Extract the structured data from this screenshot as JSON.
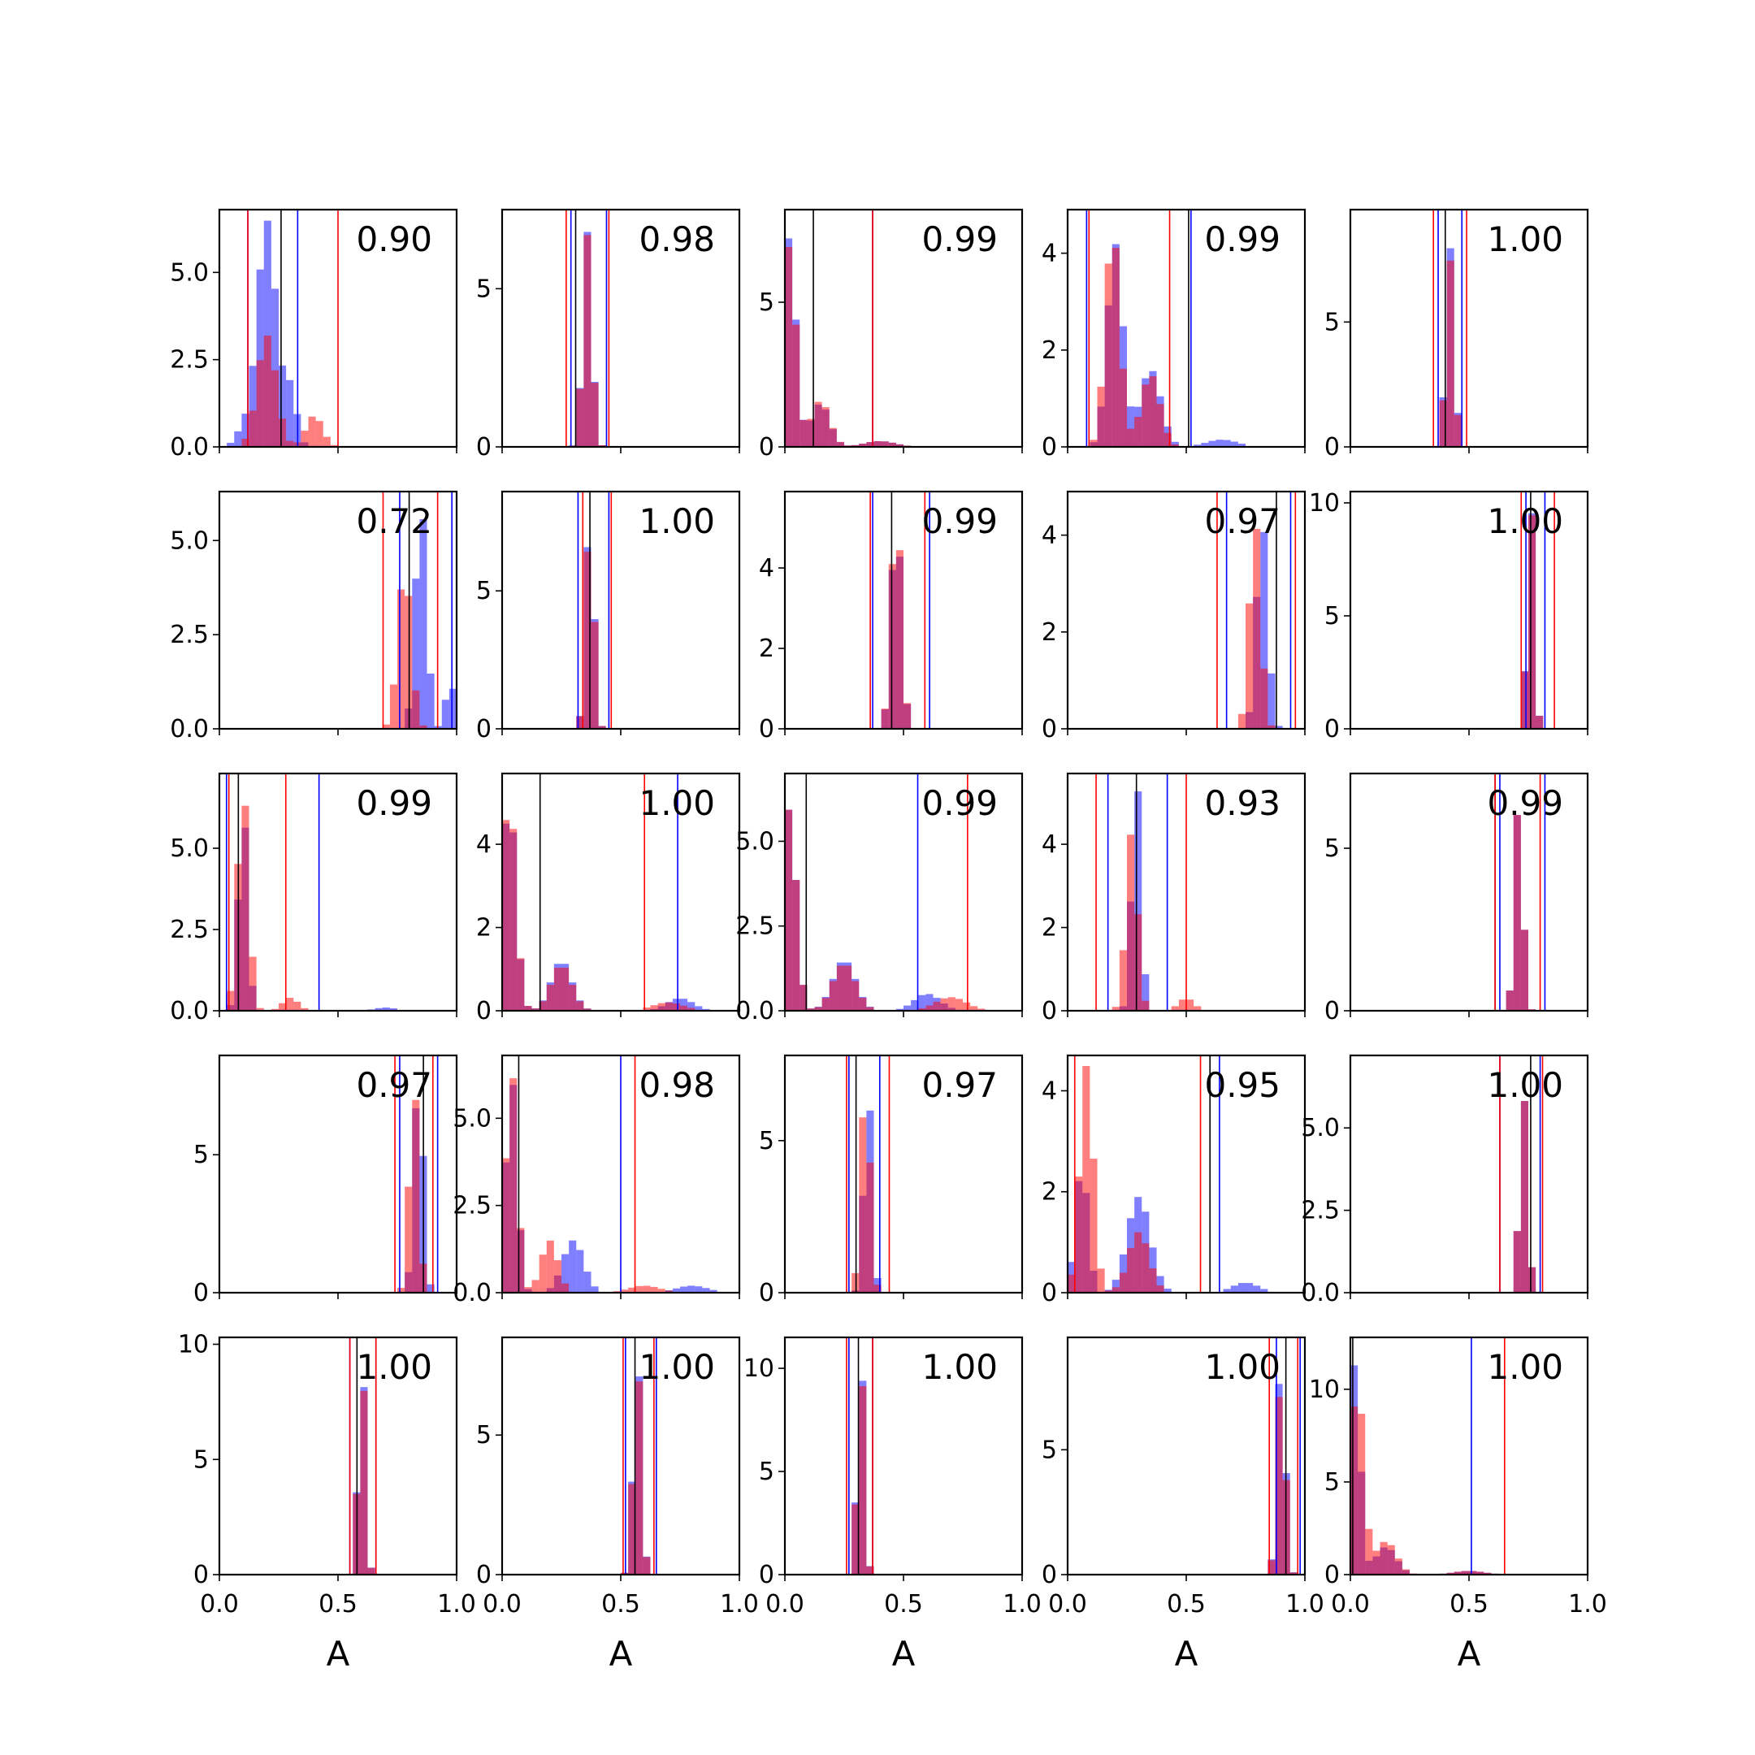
{
  "figure": {
    "xlabel": "A"
  },
  "chart_data": {
    "type": "histogram-grid",
    "rows": 5,
    "cols": 5,
    "xlim": [
      0,
      1
    ],
    "xticks": [
      "0.0",
      "0.5",
      "1.0"
    ],
    "series_colors": {
      "blue": "#0000ff",
      "red": "#ff0000",
      "black": "#000000"
    },
    "panels": [
      {
        "label": "0.90",
        "ymax": 6.8,
        "yticks": [
          "0.0",
          "2.5",
          "5.0"
        ],
        "ytick_values": [
          0,
          2.5,
          5
        ],
        "blue": [
          {
            "c": 0.1,
            "h": 0.5,
            "w": 1.4
          },
          {
            "c": 0.2,
            "h": 6.5,
            "w": 1.8
          },
          {
            "c": 0.3,
            "h": 1.6,
            "w": 1.2
          }
        ],
        "red": [
          {
            "c": 0.2,
            "h": 3.2,
            "w": 1.8
          },
          {
            "c": 0.4,
            "h": 0.9,
            "w": 1.6
          }
        ],
        "vlines": {
          "black": [
            0.26
          ],
          "blue": [
            0.12,
            0.33
          ],
          "red": [
            0.12,
            0.5
          ]
        }
      },
      {
        "label": "0.98",
        "ymax": 7.5,
        "yticks": [
          "0",
          "5"
        ],
        "ytick_values": [
          0,
          5
        ],
        "blue": [
          {
            "c": 0.36,
            "h": 6.8,
            "w": 0.9
          }
        ],
        "red": [
          {
            "c": 0.36,
            "h": 6.7,
            "w": 0.9
          }
        ],
        "vlines": {
          "black": [
            0.31
          ],
          "blue": [
            0.29,
            0.44
          ],
          "red": [
            0.27,
            0.45
          ]
        }
      },
      {
        "label": "0.99",
        "ymax": 8.2,
        "yticks": [
          "0",
          "5"
        ],
        "ytick_values": [
          0,
          5
        ],
        "blue": [
          {
            "c": 0.02,
            "h": 7.3,
            "w": 1.2
          },
          {
            "c": 0.15,
            "h": 1.5,
            "w": 1.8
          },
          {
            "c": 0.4,
            "h": 0.2,
            "w": 3
          }
        ],
        "red": [
          {
            "c": 0.02,
            "h": 7.0,
            "w": 1.2
          },
          {
            "c": 0.15,
            "h": 1.6,
            "w": 1.8
          },
          {
            "c": 0.4,
            "h": 0.2,
            "w": 3
          }
        ],
        "vlines": {
          "black": [
            0.12
          ],
          "blue": [
            0.37
          ],
          "red": [
            0.37
          ]
        }
      },
      {
        "label": "0.99",
        "ymax": 4.9,
        "yticks": [
          "0",
          "2",
          "4"
        ],
        "ytick_values": [
          0,
          2,
          4
        ],
        "blue": [
          {
            "c": 0.2,
            "h": 4.2,
            "w": 1.5
          },
          {
            "c": 0.35,
            "h": 1.6,
            "w": 2
          },
          {
            "c": 0.65,
            "h": 0.15,
            "w": 3
          }
        ],
        "red": [
          {
            "c": 0.19,
            "h": 4.5,
            "w": 1.4
          },
          {
            "c": 0.35,
            "h": 1.5,
            "w": 1.8
          }
        ],
        "vlines": {
          "black": [
            0.51
          ],
          "blue": [
            0.08,
            0.52
          ],
          "red": [
            0.09,
            0.43
          ]
        }
      },
      {
        "label": "1.00",
        "ymax": 9.5,
        "yticks": [
          "0",
          "5"
        ],
        "ytick_values": [
          0,
          5
        ],
        "blue": [
          {
            "c": 0.42,
            "h": 8.0,
            "w": 0.8
          }
        ],
        "red": [
          {
            "c": 0.42,
            "h": 7.5,
            "w": 0.8
          }
        ],
        "vlines": {
          "black": [
            0.4
          ],
          "blue": [
            0.37,
            0.47
          ],
          "red": [
            0.35,
            0.49
          ]
        }
      },
      {
        "label": "0.72",
        "ymax": 6.3,
        "yticks": [
          "0.0",
          "2.5",
          "5.0"
        ],
        "ytick_values": [
          0,
          2.5,
          5
        ],
        "blue": [
          {
            "c": 0.85,
            "h": 6.0,
            "w": 1.1
          },
          {
            "c": 0.97,
            "h": 2.5,
            "w": 0.5
          }
        ],
        "red": [
          {
            "c": 0.78,
            "h": 4.2,
            "w": 1.3
          }
        ],
        "vlines": {
          "black": [
            0.8
          ],
          "blue": [
            0.76,
            0.98
          ],
          "red": [
            0.69,
            0.92
          ]
        }
      },
      {
        "label": "1.00",
        "ymax": 8.6,
        "yticks": [
          "0",
          "5"
        ],
        "ytick_values": [
          0,
          5
        ],
        "blue": [
          {
            "c": 0.37,
            "h": 7.9,
            "w": 0.8
          }
        ],
        "red": [
          {
            "c": 0.37,
            "h": 7.7,
            "w": 0.8
          }
        ],
        "vlines": {
          "black": [
            0.37
          ],
          "blue": [
            0.32,
            0.45
          ],
          "red": [
            0.34,
            0.46
          ]
        }
      },
      {
        "label": "0.99",
        "ymax": 5.9,
        "yticks": [
          "0",
          "2",
          "4"
        ],
        "ytick_values": [
          0,
          2,
          4
        ],
        "blue": [
          {
            "c": 0.47,
            "h": 5.3,
            "w": 1.0
          }
        ],
        "red": [
          {
            "c": 0.47,
            "h": 5.5,
            "w": 1.0
          }
        ],
        "vlines": {
          "black": [
            0.45
          ],
          "blue": [
            0.37,
            0.61
          ],
          "red": [
            0.36,
            0.59
          ]
        }
      },
      {
        "label": "0.97",
        "ymax": 4.9,
        "yticks": [
          "0",
          "2",
          "4"
        ],
        "ytick_values": [
          0,
          2,
          4
        ],
        "blue": [
          {
            "c": 0.82,
            "h": 4.3,
            "w": 1.1
          }
        ],
        "red": [
          {
            "c": 0.79,
            "h": 4.3,
            "w": 1.1
          }
        ],
        "vlines": {
          "black": [
            0.88
          ],
          "blue": [
            0.67,
            0.94
          ],
          "red": [
            0.63,
            0.96
          ]
        }
      },
      {
        "label": "1.00",
        "ymax": 10.5,
        "yticks": [
          "0",
          "5",
          "10"
        ],
        "ytick_values": [
          0,
          5,
          10
        ],
        "blue": [
          {
            "c": 0.76,
            "h": 10.2,
            "w": 0.7
          }
        ],
        "red": [
          {
            "c": 0.76,
            "h": 10.1,
            "w": 0.7
          }
        ],
        "vlines": {
          "black": [
            0.76
          ],
          "blue": [
            0.74,
            0.82
          ],
          "red": [
            0.72,
            0.86
          ]
        }
      },
      {
        "label": "0.99",
        "ymax": 7.3,
        "yticks": [
          "0.0",
          "2.5",
          "5.0"
        ],
        "ytick_values": [
          0,
          2.5,
          5
        ],
        "blue": [
          {
            "c": 0.1,
            "h": 6.3,
            "w": 0.9
          },
          {
            "c": 0.7,
            "h": 0.1,
            "w": 2
          }
        ],
        "red": [
          {
            "c": 0.1,
            "h": 6.8,
            "w": 1.1
          },
          {
            "c": 0.3,
            "h": 0.4,
            "w": 1.5
          }
        ],
        "vlines": {
          "black": [
            0.08
          ],
          "blue": [
            0.03,
            0.42
          ],
          "red": [
            0.04,
            0.28
          ]
        }
      },
      {
        "label": "1.00",
        "ymax": 5.7,
        "yticks": [
          "0",
          "2",
          "4"
        ],
        "ytick_values": [
          0,
          2,
          4
        ],
        "blue": [
          {
            "c": 0.03,
            "h": 5.1,
            "w": 1.3
          },
          {
            "c": 0.25,
            "h": 1.2,
            "w": 2
          },
          {
            "c": 0.75,
            "h": 0.3,
            "w": 2.5
          }
        ],
        "red": [
          {
            "c": 0.03,
            "h": 5.2,
            "w": 1.3
          },
          {
            "c": 0.25,
            "h": 1.1,
            "w": 2
          },
          {
            "c": 0.7,
            "h": 0.2,
            "w": 3
          }
        ],
        "vlines": {
          "black": [
            0.16
          ],
          "blue": [
            0.74
          ],
          "red": [
            0.6
          ]
        }
      },
      {
        "label": "0.99",
        "ymax": 7.0,
        "yticks": [
          "0.0",
          "2.5",
          "5.0"
        ],
        "ytick_values": [
          0,
          2.5,
          5
        ],
        "blue": [
          {
            "c": 0.02,
            "h": 6.0,
            "w": 1.3
          },
          {
            "c": 0.25,
            "h": 1.5,
            "w": 2.2
          },
          {
            "c": 0.6,
            "h": 0.5,
            "w": 2.5
          }
        ],
        "red": [
          {
            "c": 0.02,
            "h": 6.0,
            "w": 1.3
          },
          {
            "c": 0.25,
            "h": 1.4,
            "w": 2.2
          },
          {
            "c": 0.7,
            "h": 0.4,
            "w": 3
          }
        ],
        "vlines": {
          "black": [
            0.09
          ],
          "blue": [
            0.56
          ],
          "red": [
            0.77
          ]
        }
      },
      {
        "label": "0.93",
        "ymax": 5.7,
        "yticks": [
          "0",
          "2",
          "4"
        ],
        "ytick_values": [
          0,
          2,
          4
        ],
        "blue": [
          {
            "c": 0.29,
            "h": 5.6,
            "w": 0.9
          }
        ],
        "red": [
          {
            "c": 0.27,
            "h": 4.3,
            "w": 1.1
          },
          {
            "c": 0.5,
            "h": 0.3,
            "w": 1.5
          }
        ],
        "vlines": {
          "black": [
            0.29
          ],
          "blue": [
            0.17,
            0.42
          ],
          "red": [
            0.12,
            0.5
          ]
        }
      },
      {
        "label": "0.99",
        "ymax": 7.3,
        "yticks": [
          "0",
          "5"
        ],
        "ytick_values": [
          0,
          5
        ],
        "blue": [
          {
            "c": 0.71,
            "h": 6.5,
            "w": 0.8
          }
        ],
        "red": [
          {
            "c": 0.71,
            "h": 6.5,
            "w": 0.8
          }
        ],
        "vlines": {
          "black": [
            0.61
          ],
          "blue": [
            0.63,
            0.82
          ],
          "red": [
            0.61,
            0.8
          ]
        }
      },
      {
        "label": "0.97",
        "ymax": 8.6,
        "yticks": [
          "0",
          "5"
        ],
        "ytick_values": [
          0,
          5
        ],
        "blue": [
          {
            "c": 0.84,
            "h": 8.0,
            "w": 0.9
          }
        ],
        "red": [
          {
            "c": 0.82,
            "h": 7.6,
            "w": 0.9
          }
        ],
        "vlines": {
          "black": [
            0.86
          ],
          "blue": [
            0.76,
            0.92
          ],
          "red": [
            0.74,
            0.9
          ]
        }
      },
      {
        "label": "0.98",
        "ymax": 6.8,
        "yticks": [
          "0.0",
          "2.5",
          "5.0"
        ],
        "ytick_values": [
          0,
          2.5,
          5
        ],
        "blue": [
          {
            "c": 0.04,
            "h": 6.2,
            "w": 1.1
          },
          {
            "c": 0.3,
            "h": 1.5,
            "w": 2
          },
          {
            "c": 0.8,
            "h": 0.2,
            "w": 3
          }
        ],
        "red": [
          {
            "c": 0.04,
            "h": 6.4,
            "w": 1.1
          },
          {
            "c": 0.2,
            "h": 1.5,
            "w": 1.6
          },
          {
            "c": 0.6,
            "h": 0.2,
            "w": 3
          }
        ],
        "vlines": {
          "black": [
            0.07
          ],
          "blue": [
            0.5
          ],
          "red": [
            0.56
          ]
        }
      },
      {
        "label": "0.97",
        "ymax": 7.8,
        "yticks": [
          "0",
          "5"
        ],
        "ytick_values": [
          0,
          5
        ],
        "blue": [
          {
            "c": 0.35,
            "h": 6.9,
            "w": 0.8
          }
        ],
        "red": [
          {
            "c": 0.34,
            "h": 6.9,
            "w": 0.9
          }
        ],
        "vlines": {
          "black": [
            0.3
          ],
          "blue": [
            0.27,
            0.4
          ],
          "red": [
            0.26,
            0.44
          ]
        }
      },
      {
        "label": "0.95",
        "ymax": 4.7,
        "yticks": [
          "0",
          "2",
          "4"
        ],
        "ytick_values": [
          0,
          2,
          4
        ],
        "blue": [
          {
            "c": 0.06,
            "h": 2.5,
            "w": 1.2
          },
          {
            "c": 0.3,
            "h": 1.9,
            "w": 2.2
          },
          {
            "c": 0.75,
            "h": 0.2,
            "w": 2.5
          }
        ],
        "red": [
          {
            "c": 0.08,
            "h": 4.5,
            "w": 1.3
          },
          {
            "c": 0.3,
            "h": 1.2,
            "w": 2
          }
        ],
        "vlines": {
          "black": [
            0.6
          ],
          "blue": [
            0.64
          ],
          "red": [
            0.03,
            0.56
          ]
        }
      },
      {
        "label": "1.00",
        "ymax": 7.2,
        "yticks": [
          "0.0",
          "2.5",
          "5.0"
        ],
        "ytick_values": [
          0,
          2.5,
          5
        ],
        "blue": [
          {
            "c": 0.73,
            "h": 6.0,
            "w": 0.8
          }
        ],
        "red": [
          {
            "c": 0.73,
            "h": 6.0,
            "w": 0.8
          }
        ],
        "vlines": {
          "black": [
            0.76
          ],
          "blue": [
            0.63,
            0.8
          ],
          "red": [
            0.63,
            0.81
          ]
        }
      },
      {
        "label": "1.00",
        "ymax": 10.3,
        "yticks": [
          "0",
          "5",
          "10"
        ],
        "ytick_values": [
          0,
          5,
          10
        ],
        "blue": [
          {
            "c": 0.6,
            "h": 9.8,
            "w": 0.7
          }
        ],
        "red": [
          {
            "c": 0.6,
            "h": 9.6,
            "w": 0.7
          }
        ],
        "vlines": {
          "black": [
            0.58
          ],
          "blue": [
            0.55,
            0.66
          ],
          "red": [
            0.55,
            0.66
          ]
        }
      },
      {
        "label": "1.00",
        "ymax": 8.5,
        "yticks": [
          "0",
          "5"
        ],
        "ytick_values": [
          0,
          5
        ],
        "blue": [
          {
            "c": 0.57,
            "h": 7.9,
            "w": 0.8
          }
        ],
        "red": [
          {
            "c": 0.57,
            "h": 7.7,
            "w": 0.8
          }
        ],
        "vlines": {
          "black": [
            0.56
          ],
          "blue": [
            0.52,
            0.65
          ],
          "red": [
            0.51,
            0.64
          ]
        }
      },
      {
        "label": "1.00",
        "ymax": 11.5,
        "yticks": [
          "0",
          "5",
          "10"
        ],
        "ytick_values": [
          0,
          5,
          10
        ],
        "blue": [
          {
            "c": 0.32,
            "h": 10.8,
            "w": 0.7
          }
        ],
        "red": [
          {
            "c": 0.32,
            "h": 10.5,
            "w": 0.7
          }
        ],
        "vlines": {
          "black": [
            0.31
          ],
          "blue": [
            0.27,
            0.37
          ],
          "red": [
            0.26,
            0.37
          ]
        }
      },
      {
        "label": "1.00",
        "ymax": 9.5,
        "yticks": [
          "0",
          "5"
        ],
        "ytick_values": [
          0,
          5
        ],
        "blue": [
          {
            "c": 0.9,
            "h": 8.8,
            "w": 0.8
          }
        ],
        "red": [
          {
            "c": 0.9,
            "h": 8.2,
            "w": 0.8
          }
        ],
        "vlines": {
          "black": [
            0.92
          ],
          "blue": [
            0.88,
            0.98
          ],
          "red": [
            0.85,
            0.97
          ]
        }
      },
      {
        "label": "1.00",
        "ymax": 12.8,
        "yticks": [
          "0",
          "5",
          "10"
        ],
        "ytick_values": [
          0,
          5,
          10
        ],
        "blue": [
          {
            "c": 0.02,
            "h": 11.5,
            "w": 1.0
          },
          {
            "c": 0.15,
            "h": 1.5,
            "w": 2
          },
          {
            "c": 0.5,
            "h": 0.2,
            "w": 3
          }
        ],
        "red": [
          {
            "c": 0.03,
            "h": 10.5,
            "w": 1.2
          },
          {
            "c": 0.15,
            "h": 1.8,
            "w": 2
          },
          {
            "c": 0.5,
            "h": 0.2,
            "w": 3
          }
        ],
        "vlines": {
          "black": [
            0.01
          ],
          "blue": [
            0.51
          ],
          "red": [
            0.65
          ]
        }
      }
    ]
  }
}
